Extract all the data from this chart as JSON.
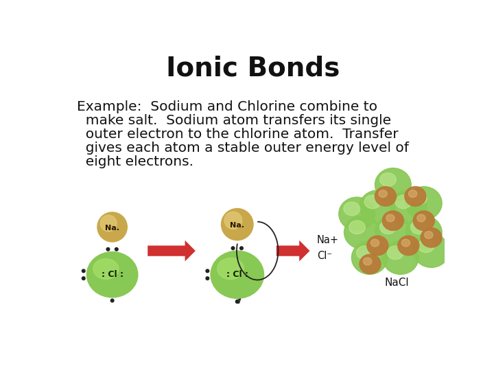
{
  "title": "Ionic Bonds",
  "title_fontsize": 28,
  "body_text_lines": [
    "Example:  Sodium and Chlorine combine to",
    "  make salt.  Sodium atom transfers its single",
    "  outer electron to the chlorine atom.  Transfer",
    "  gives each atom a stable outer energy level of",
    "  eight electrons."
  ],
  "body_fontsize": 14.5,
  "background_color": "#ffffff",
  "text_color": "#111111",
  "na_atom_color": "#c8a84b",
  "na_highlight_color": "#e8d080",
  "cl_atom_color": "#88c855",
  "cl_highlight_color": "#b0e870",
  "nacl_green_color": "#88c855",
  "nacl_orange_color": "#b87838",
  "arrow_color": "#d03030",
  "dot_color": "#222222"
}
